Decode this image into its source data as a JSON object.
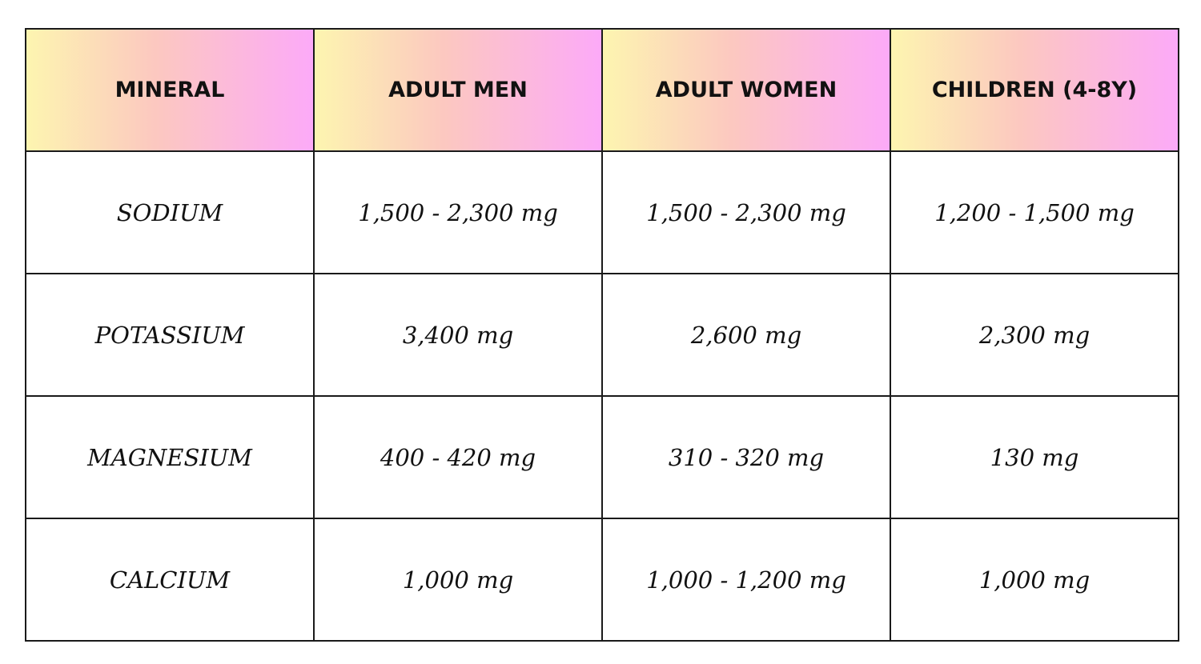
{
  "table": {
    "header": [
      "MINERAL",
      "ADULT MEN",
      "ADULT WOMEN",
      "CHILDREN (4-8Y)"
    ],
    "rows": [
      [
        "SODIUM",
        "1,500 - 2,300 mg",
        "1,500 - 2,300 mg",
        "1,200 - 1,500 mg"
      ],
      [
        "POTASSIUM",
        "3,400 mg",
        "2,600 mg",
        "2,300 mg"
      ],
      [
        "MAGNESIUM",
        "400 - 420 mg",
        "310 - 320 mg",
        "130 mg"
      ],
      [
        "CALCIUM",
        "1,000 mg",
        "1,000 - 1,200 mg",
        "1,000 mg"
      ]
    ]
  }
}
